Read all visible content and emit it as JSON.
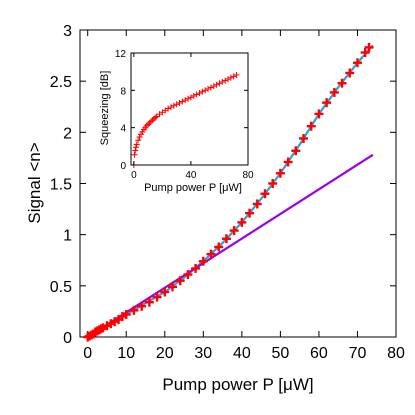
{
  "chart_data": [
    {
      "type": "line",
      "title": "",
      "xlabel": "Pump power P [μW]",
      "ylabel": "Signal <n>",
      "xlim": [
        -2,
        80
      ],
      "ylim": [
        0,
        3
      ],
      "xticks": [
        0,
        10,
        20,
        30,
        40,
        50,
        60,
        70,
        80
      ],
      "yticks": [
        0,
        0.5,
        1,
        1.5,
        2,
        2.5,
        3
      ],
      "xtick_labels": [
        "0",
        "10",
        "20",
        "30",
        "40",
        "50",
        "60",
        "70",
        "80"
      ],
      "ytick_labels": [
        "0",
        "0.5",
        "1",
        "1.5",
        "2",
        "2.5",
        "3"
      ],
      "grid": false,
      "series": [
        {
          "style": "markers",
          "marker": "cross",
          "color": "#ff0000",
          "x": [
            0,
            0.5,
            1,
            1.5,
            2,
            2.5,
            3,
            3.5,
            4,
            5,
            6,
            7,
            8,
            9,
            10,
            12,
            14,
            16,
            18,
            20,
            22,
            24,
            26,
            28,
            30,
            32,
            34,
            36,
            38,
            40,
            42,
            44,
            46,
            48,
            50,
            52,
            54,
            56,
            58,
            60,
            62,
            64,
            66,
            68,
            70,
            72,
            73
          ],
          "y": [
            0,
            0.01,
            0.02,
            0.03,
            0.05,
            0.06,
            0.07,
            0.08,
            0.09,
            0.11,
            0.13,
            0.15,
            0.17,
            0.2,
            0.22,
            0.26,
            0.3,
            0.34,
            0.39,
            0.44,
            0.49,
            0.55,
            0.61,
            0.67,
            0.74,
            0.81,
            0.88,
            0.96,
            1.04,
            1.12,
            1.21,
            1.3,
            1.4,
            1.5,
            1.6,
            1.71,
            1.82,
            1.94,
            2.06,
            2.18,
            2.29,
            2.39,
            2.48,
            2.58,
            2.68,
            2.78,
            2.83
          ]
        },
        {
          "style": "line",
          "color": "#2e9fd8",
          "x": [
            0,
            5,
            10,
            15,
            20,
            25,
            30,
            35,
            40,
            45,
            50,
            55,
            60,
            65,
            70,
            74
          ],
          "y": [
            0,
            0.11,
            0.22,
            0.33,
            0.44,
            0.58,
            0.74,
            0.92,
            1.12,
            1.35,
            1.6,
            1.88,
            2.18,
            2.44,
            2.68,
            2.85
          ]
        },
        {
          "style": "line",
          "color": "#9b00e8",
          "x": [
            0,
            74
          ],
          "y": [
            0,
            1.78
          ]
        }
      ]
    },
    {
      "type": "line",
      "title": "",
      "xlabel": "Pump power P [μW]",
      "ylabel": "Squeezing [dB]",
      "xlim": [
        -2,
        80
      ],
      "ylim": [
        0,
        12
      ],
      "xticks": [
        0,
        40,
        80
      ],
      "yticks": [
        0,
        4,
        8,
        12
      ],
      "xtick_labels": [
        "0",
        "40",
        "80"
      ],
      "ytick_labels": [
        "0",
        "4",
        "8",
        "12"
      ],
      "grid": false,
      "series": [
        {
          "style": "markers",
          "marker": "plus",
          "color": "#ff0000",
          "x": [
            0,
            0.5,
            1,
            1.5,
            2,
            3,
            4,
            5,
            6,
            7,
            8,
            9,
            10,
            11,
            12,
            13,
            14,
            15,
            16,
            18,
            20,
            22,
            24,
            26,
            28,
            30,
            32,
            34,
            36,
            38,
            40,
            42,
            44,
            46,
            48,
            50,
            52,
            54,
            56,
            58,
            60,
            62,
            64,
            66,
            68,
            70,
            72
          ],
          "y": [
            0,
            1.1,
            1.55,
            1.9,
            2.2,
            2.65,
            3.0,
            3.3,
            3.55,
            3.8,
            4.0,
            4.2,
            4.35,
            4.5,
            4.65,
            4.8,
            4.95,
            5.08,
            5.2,
            5.45,
            5.65,
            5.85,
            6.05,
            6.2,
            6.35,
            6.5,
            6.65,
            6.8,
            6.95,
            7.1,
            7.25,
            7.4,
            7.55,
            7.7,
            7.85,
            8.0,
            8.15,
            8.3,
            8.45,
            8.6,
            8.75,
            8.9,
            9.05,
            9.2,
            9.35,
            9.5,
            9.65
          ]
        }
      ]
    }
  ]
}
